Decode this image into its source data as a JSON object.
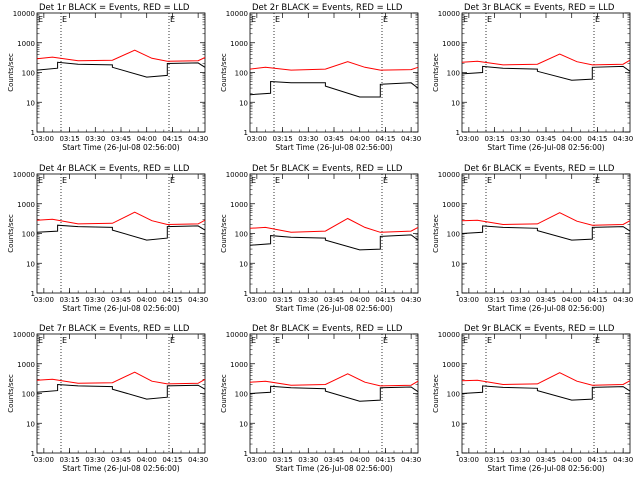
{
  "chart_data": [
    {
      "type": "line",
      "title": "Det 1r BLACK = Events, RED = LLD",
      "xlabel": "Start Time (26-Jul-08 02:56:00)",
      "ylabel": "Counts/sec",
      "marker": "E",
      "x_ticks": [
        "03:00",
        "03:15",
        "03:30",
        "03:45",
        "04:00",
        "04:15",
        "04:30"
      ],
      "y_ticks": [
        "1",
        "10",
        "100",
        "1000",
        "10000"
      ],
      "yscale": "log",
      "ylim": [
        1,
        10000
      ],
      "markers_x": [
        "03:10",
        "04:13"
      ],
      "series": [
        {
          "color": "#ff0000",
          "x": [
            "02:56",
            "03:05",
            "03:20",
            "03:40",
            "03:53",
            "04:03",
            "04:12",
            "04:30",
            "04:34"
          ],
          "y": [
            290,
            330,
            250,
            260,
            560,
            300,
            240,
            250,
            320
          ]
        },
        {
          "color": "#000000",
          "x": [
            "02:56",
            "03:08",
            "03:08",
            "03:20",
            "03:40",
            "03:40",
            "04:00",
            "04:12",
            "04:12",
            "04:30",
            "04:34"
          ],
          "y": [
            120,
            140,
            220,
            190,
            180,
            150,
            70,
            80,
            200,
            210,
            150
          ]
        }
      ]
    },
    {
      "type": "line",
      "title": "Det 2r BLACK = Events, RED = LLD",
      "xlabel": "Start Time (26-Jul-08 02:56:00)",
      "ylabel": "Counts/sec",
      "marker": "E",
      "x_ticks": [
        "03:00",
        "03:15",
        "03:30",
        "03:45",
        "04:00",
        "04:15",
        "04:30"
      ],
      "y_ticks": [
        "1",
        "10",
        "100",
        "1000",
        "10000"
      ],
      "yscale": "log",
      "ylim": [
        1,
        10000
      ],
      "markers_x": [
        "03:10",
        "04:13"
      ],
      "series": [
        {
          "color": "#ff0000",
          "x": [
            "02:56",
            "03:05",
            "03:20",
            "03:40",
            "03:53",
            "04:03",
            "04:12",
            "04:30",
            "04:34"
          ],
          "y": [
            130,
            150,
            120,
            130,
            230,
            150,
            120,
            125,
            150
          ]
        },
        {
          "color": "#000000",
          "x": [
            "02:56",
            "03:08",
            "03:08",
            "03:20",
            "03:40",
            "03:40",
            "04:00",
            "04:12",
            "04:12",
            "04:30",
            "04:34"
          ],
          "y": [
            18,
            20,
            50,
            45,
            45,
            35,
            15,
            15,
            40,
            45,
            30
          ]
        }
      ]
    },
    {
      "type": "line",
      "title": "Det 3r BLACK = Events, RED = LLD",
      "xlabel": "Start Time (26-Jul-08 02:56:00)",
      "ylabel": "Counts/sec",
      "marker": "E",
      "x_ticks": [
        "03:00",
        "03:15",
        "03:30",
        "03:45",
        "04:00",
        "04:15",
        "04:30"
      ],
      "y_ticks": [
        "1",
        "10",
        "100",
        "1000",
        "10000"
      ],
      "yscale": "log",
      "ylim": [
        1,
        10000
      ],
      "markers_x": [
        "03:10",
        "04:13"
      ],
      "series": [
        {
          "color": "#ff0000",
          "x": [
            "02:56",
            "03:05",
            "03:20",
            "03:40",
            "03:53",
            "04:03",
            "04:12",
            "04:30",
            "04:34"
          ],
          "y": [
            220,
            240,
            180,
            190,
            420,
            230,
            180,
            190,
            260
          ]
        },
        {
          "color": "#000000",
          "x": [
            "02:56",
            "03:08",
            "03:08",
            "03:20",
            "03:40",
            "03:40",
            "04:00",
            "04:12",
            "04:12",
            "04:30",
            "04:34"
          ],
          "y": [
            90,
            100,
            160,
            140,
            130,
            110,
            55,
            60,
            150,
            160,
            110
          ]
        }
      ]
    },
    {
      "type": "line",
      "title": "Det 4r BLACK = Events, RED = LLD",
      "xlabel": "Start Time (26-Jul-08 02:56:00)",
      "ylabel": "Counts/sec",
      "marker": "E",
      "x_ticks": [
        "03:00",
        "03:15",
        "03:30",
        "03:45",
        "04:00",
        "04:15",
        "04:30"
      ],
      "y_ticks": [
        "1",
        "10",
        "100",
        "1000",
        "10000"
      ],
      "yscale": "log",
      "ylim": [
        1,
        10000
      ],
      "markers_x": [
        "03:10",
        "04:13"
      ],
      "series": [
        {
          "color": "#ff0000",
          "x": [
            "02:56",
            "03:05",
            "03:20",
            "03:40",
            "03:53",
            "04:03",
            "04:12",
            "04:30",
            "04:34"
          ],
          "y": [
            280,
            300,
            210,
            220,
            520,
            270,
            200,
            210,
            280
          ]
        },
        {
          "color": "#000000",
          "x": [
            "02:56",
            "03:08",
            "03:08",
            "03:20",
            "03:40",
            "03:40",
            "04:00",
            "04:12",
            "04:12",
            "04:30",
            "04:34"
          ],
          "y": [
            110,
            120,
            190,
            170,
            160,
            130,
            60,
            70,
            170,
            180,
            130
          ]
        }
      ]
    },
    {
      "type": "line",
      "title": "Det 5r BLACK = Events, RED = LLD",
      "xlabel": "Start Time (26-Jul-08 02:56:00)",
      "ylabel": "Counts/sec",
      "marker": "E",
      "x_ticks": [
        "03:00",
        "03:15",
        "03:30",
        "03:45",
        "04:00",
        "04:15",
        "04:30"
      ],
      "y_ticks": [
        "1",
        "10",
        "100",
        "1000",
        "10000"
      ],
      "yscale": "log",
      "ylim": [
        1,
        10000
      ],
      "markers_x": [
        "03:10",
        "04:13"
      ],
      "series": [
        {
          "color": "#ff0000",
          "x": [
            "02:56",
            "03:05",
            "03:20",
            "03:40",
            "03:53",
            "04:03",
            "04:12",
            "04:30",
            "04:34"
          ],
          "y": [
            150,
            160,
            110,
            120,
            320,
            160,
            110,
            120,
            160
          ]
        },
        {
          "color": "#000000",
          "x": [
            "02:56",
            "03:08",
            "03:08",
            "03:20",
            "03:40",
            "03:40",
            "04:00",
            "04:12",
            "04:12",
            "04:30",
            "04:34"
          ],
          "y": [
            40,
            45,
            85,
            75,
            70,
            60,
            28,
            30,
            80,
            90,
            60
          ]
        }
      ]
    },
    {
      "type": "line",
      "title": "Det 6r BLACK = Events, RED = LLD",
      "xlabel": "Start Time (26-Jul-08 02:56:00)",
      "ylabel": "Counts/sec",
      "marker": "E",
      "x_ticks": [
        "03:00",
        "03:15",
        "03:30",
        "03:45",
        "04:00",
        "04:15",
        "04:30"
      ],
      "y_ticks": [
        "1",
        "10",
        "100",
        "1000",
        "10000"
      ],
      "yscale": "log",
      "ylim": [
        1,
        10000
      ],
      "markers_x": [
        "03:10",
        "04:13"
      ],
      "series": [
        {
          "color": "#ff0000",
          "x": [
            "02:56",
            "03:05",
            "03:20",
            "03:40",
            "03:53",
            "04:03",
            "04:12",
            "04:30",
            "04:34"
          ],
          "y": [
            270,
            280,
            200,
            210,
            500,
            260,
            190,
            200,
            270
          ]
        },
        {
          "color": "#000000",
          "x": [
            "02:56",
            "03:08",
            "03:08",
            "03:20",
            "03:40",
            "03:40",
            "04:00",
            "04:12",
            "04:12",
            "04:30",
            "04:34"
          ],
          "y": [
            100,
            110,
            180,
            160,
            150,
            125,
            60,
            65,
            160,
            170,
            120
          ]
        }
      ]
    },
    {
      "type": "line",
      "title": "Det 7r BLACK = Events, RED = LLD",
      "xlabel": "Start Time (26-Jul-08 02:56:00)",
      "ylabel": "Counts/sec",
      "marker": "E",
      "x_ticks": [
        "03:00",
        "03:15",
        "03:30",
        "03:45",
        "04:00",
        "04:15",
        "04:30"
      ],
      "y_ticks": [
        "1",
        "10",
        "100",
        "1000",
        "10000"
      ],
      "yscale": "log",
      "ylim": [
        1,
        10000
      ],
      "markers_x": [
        "03:10",
        "04:13"
      ],
      "series": [
        {
          "color": "#ff0000",
          "x": [
            "02:56",
            "03:05",
            "03:20",
            "03:40",
            "03:53",
            "04:03",
            "04:12",
            "04:30",
            "04:34"
          ],
          "y": [
            280,
            300,
            220,
            230,
            520,
            260,
            210,
            220,
            300
          ]
        },
        {
          "color": "#000000",
          "x": [
            "02:56",
            "03:08",
            "03:08",
            "03:20",
            "03:40",
            "03:40",
            "04:00",
            "04:12",
            "04:12",
            "04:30",
            "04:34"
          ],
          "y": [
            110,
            125,
            200,
            180,
            170,
            140,
            65,
            75,
            180,
            190,
            140
          ]
        }
      ]
    },
    {
      "type": "line",
      "title": "Det 8r BLACK = Events, RED = LLD",
      "xlabel": "Start Time (26-Jul-08 02:56:00)",
      "ylabel": "Counts/sec",
      "marker": "E",
      "x_ticks": [
        "03:00",
        "03:15",
        "03:30",
        "03:45",
        "04:00",
        "04:15",
        "04:30"
      ],
      "y_ticks": [
        "1",
        "10",
        "100",
        "1000",
        "10000"
      ],
      "yscale": "log",
      "ylim": [
        1,
        10000
      ],
      "markers_x": [
        "03:10",
        "04:13"
      ],
      "series": [
        {
          "color": "#ff0000",
          "x": [
            "02:56",
            "03:05",
            "03:20",
            "03:40",
            "03:53",
            "04:03",
            "04:12",
            "04:30",
            "04:34"
          ],
          "y": [
            240,
            260,
            190,
            200,
            460,
            240,
            180,
            190,
            260
          ]
        },
        {
          "color": "#000000",
          "x": [
            "02:56",
            "03:08",
            "03:08",
            "03:20",
            "03:40",
            "03:40",
            "04:00",
            "04:12",
            "04:12",
            "04:30",
            "04:34"
          ],
          "y": [
            100,
            110,
            175,
            155,
            145,
            120,
            55,
            60,
            155,
            165,
            115
          ]
        }
      ]
    },
    {
      "type": "line",
      "title": "Det 9r BLACK = Events, RED = LLD",
      "xlabel": "Start Time (26-Jul-08 02:56:00)",
      "ylabel": "Counts/sec",
      "marker": "E",
      "x_ticks": [
        "03:00",
        "03:15",
        "03:30",
        "03:45",
        "04:00",
        "04:15",
        "04:30"
      ],
      "y_ticks": [
        "1",
        "10",
        "100",
        "1000",
        "10000"
      ],
      "yscale": "log",
      "ylim": [
        1,
        10000
      ],
      "markers_x": [
        "03:10",
        "04:13"
      ],
      "series": [
        {
          "color": "#ff0000",
          "x": [
            "02:56",
            "03:05",
            "03:20",
            "03:40",
            "03:53",
            "04:03",
            "04:12",
            "04:30",
            "04:34"
          ],
          "y": [
            270,
            280,
            200,
            210,
            500,
            260,
            190,
            200,
            270
          ]
        },
        {
          "color": "#000000",
          "x": [
            "02:56",
            "03:08",
            "03:08",
            "03:20",
            "03:40",
            "03:40",
            "04:00",
            "04:12",
            "04:12",
            "04:30",
            "04:34"
          ],
          "y": [
            100,
            110,
            180,
            160,
            150,
            125,
            60,
            65,
            160,
            170,
            120
          ]
        }
      ]
    }
  ]
}
